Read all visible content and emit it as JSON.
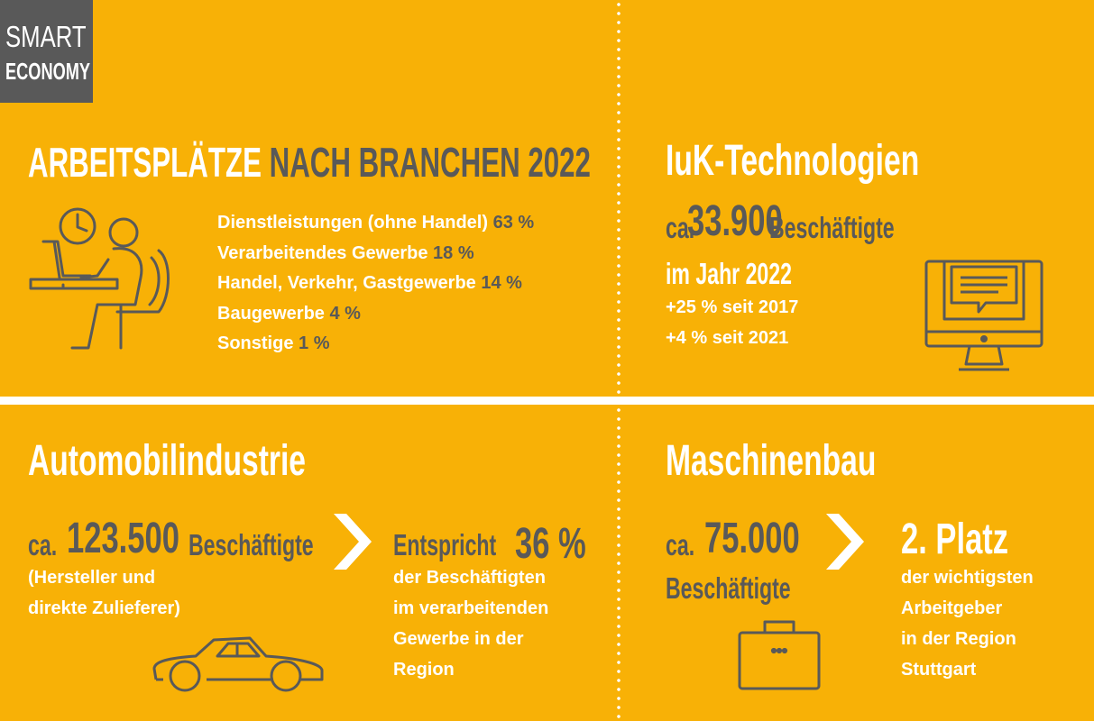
{
  "logo": {
    "line1": "SMART",
    "line2": "ECONOMY"
  },
  "top_left": {
    "title_part1": "ARBEITSPLÄTZE",
    "title_part2": "NACH BRANCHEN 2022",
    "branches": [
      {
        "label": "Dienstleistungen (ohne Handel)",
        "value": "63 %"
      },
      {
        "label": "Verarbeitendes Gewerbe",
        "value": "18 %"
      },
      {
        "label": "Handel, Verkehr, Gastgewerbe",
        "value": "14 %"
      },
      {
        "label": "Baugewerbe",
        "value": "4 %"
      },
      {
        "label": "Sonstige",
        "value": "1 %"
      }
    ],
    "icon": "office-worker-icon"
  },
  "top_right": {
    "title": "IuK-Technologien",
    "prefix": "ca.",
    "number": "33.900",
    "unit": "Beschäftigte",
    "year_line": "im Jahr 2022",
    "change1": "+25 % seit 2017",
    "change2": "+4 % seit 2021",
    "icon": "computer-monitor-icon"
  },
  "bottom_left": {
    "title": "Automobilindustrie",
    "prefix": "ca.",
    "number": "123.500",
    "unit": "Beschäftigte",
    "note1": "(Hersteller und",
    "note2": "direkte Zulieferer)",
    "arrow": "chevron-right-icon",
    "share_prefix": "Entspricht",
    "share_value": "36 %",
    "share_lines": [
      "der Beschäftigten",
      "im verarbeitenden",
      "Gewerbe in der",
      "Region"
    ],
    "icon": "car-icon"
  },
  "bottom_right": {
    "title": "Maschinenbau",
    "prefix": "ca.",
    "number": "75.000",
    "unit": "Beschäftigte",
    "arrow": "chevron-right-icon",
    "rank": "2. Platz",
    "rank_lines": [
      "der wichtigsten",
      "Arbeitgeber",
      "in der Region",
      "Stuttgart"
    ],
    "icon": "briefcase-icon"
  },
  "colors": {
    "background": "#F8B106",
    "grey": "#595959",
    "white": "#FFFFFF"
  }
}
